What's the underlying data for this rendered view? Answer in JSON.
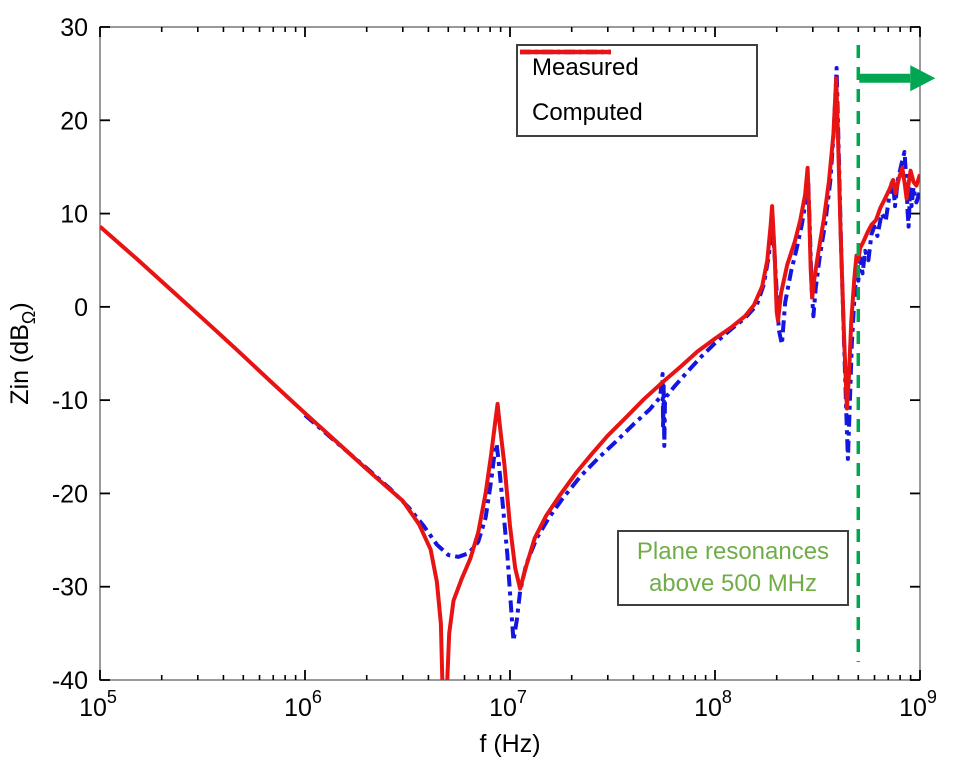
{
  "chart_data": {
    "type": "line",
    "title": "",
    "xlabel": "f (Hz)",
    "ylabel": {
      "main": "Zin (dB",
      "subscript": "Ω",
      "suffix": ")"
    },
    "x_scale": "log",
    "xlim": [
      100000,
      1000000000
    ],
    "ylim": [
      -40,
      30
    ],
    "x_ticks": [
      {
        "base": "10",
        "exp": "5"
      },
      {
        "base": "10",
        "exp": "6"
      },
      {
        "base": "10",
        "exp": "7"
      },
      {
        "base": "10",
        "exp": "8"
      },
      {
        "base": "10",
        "exp": "9"
      }
    ],
    "y_ticks": [
      "30",
      "20",
      "10",
      "0",
      "-10",
      "-20",
      "-30",
      "-40"
    ],
    "grid": false,
    "legend": {
      "position": "top-center-inside"
    },
    "series": [
      {
        "name": "Measured",
        "color": "#1515e0",
        "line_style": "dash-dot",
        "points": [
          [
            1000000.0,
            -11.6
          ],
          [
            1400000.0,
            -14.4
          ],
          [
            2000000.0,
            -17.3
          ],
          [
            2600000.0,
            -19.5
          ],
          [
            3200000.0,
            -21.5
          ],
          [
            3800000.0,
            -23.5
          ],
          [
            4400000.0,
            -25.5
          ],
          [
            5000000.0,
            -26.6
          ],
          [
            5600000.0,
            -26.8
          ],
          [
            6300000.0,
            -26.4
          ],
          [
            7000000.0,
            -25.2
          ],
          [
            7600000.0,
            -22.6
          ],
          [
            8100000.0,
            -18.6
          ],
          [
            8450000.0,
            -15.3
          ],
          [
            8600000.0,
            -14.7
          ],
          [
            8800000.0,
            -16.5
          ],
          [
            9200000.0,
            -21.0
          ],
          [
            9700000.0,
            -26.5
          ],
          [
            10100000.0,
            -32.0
          ],
          [
            10400000.0,
            -35.8
          ],
          [
            10800000.0,
            -33.5
          ],
          [
            11200000.0,
            -30.5
          ],
          [
            12000000.0,
            -27.6
          ],
          [
            13500000.0,
            -24.8
          ],
          [
            15500000.0,
            -22.6
          ],
          [
            18000000.0,
            -20.6
          ],
          [
            22000000.0,
            -18.2
          ],
          [
            27000000.0,
            -16.2
          ],
          [
            33000000.0,
            -14.4
          ],
          [
            40000000.0,
            -12.6
          ],
          [
            48000000.0,
            -11.0
          ],
          [
            54000000.0,
            -9.7
          ],
          [
            55500000.0,
            -7.2
          ],
          [
            55800000.0,
            -13.0
          ],
          [
            56200000.0,
            -8.5
          ],
          [
            56600000.0,
            -14.9
          ],
          [
            57000000.0,
            -10.0
          ],
          [
            58000000.0,
            -9.6
          ],
          [
            63000000.0,
            -8.6
          ],
          [
            73000000.0,
            -7.0
          ],
          [
            86000000.0,
            -5.3
          ],
          [
            100000000.0,
            -3.9
          ],
          [
            120000000.0,
            -2.4
          ],
          [
            140000000.0,
            -1.2
          ],
          [
            160000000.0,
            0.2
          ],
          [
            173000000.0,
            2.4
          ],
          [
            183000000.0,
            5.5
          ],
          [
            191000000.0,
            9.0
          ],
          [
            196000000.0,
            5.0
          ],
          [
            205000000.0,
            -2.5
          ],
          [
            212000000.0,
            -4.0
          ],
          [
            220000000.0,
            0.5
          ],
          [
            235000000.0,
            3.8
          ],
          [
            250000000.0,
            6.2
          ],
          [
            265000000.0,
            8.8
          ],
          [
            278000000.0,
            11.5
          ],
          [
            285000000.0,
            13.5
          ],
          [
            290000000.0,
            8.5
          ],
          [
            296000000.0,
            2.0
          ],
          [
            302000000.0,
            -1.0
          ],
          [
            310000000.0,
            2.0
          ],
          [
            325000000.0,
            5.5
          ],
          [
            345000000.0,
            9.0
          ],
          [
            365000000.0,
            13.5
          ],
          [
            380000000.0,
            19.0
          ],
          [
            392000000.0,
            25.6
          ],
          [
            400000000.0,
            18.0
          ],
          [
            412000000.0,
            6.5
          ],
          [
            428000000.0,
            -5.0
          ],
          [
            438000000.0,
            -12.0
          ],
          [
            445000000.0,
            -16.3
          ],
          [
            452000000.0,
            -12.0
          ],
          [
            465000000.0,
            -4.0
          ],
          [
            480000000.0,
            1.5
          ],
          [
            492000000.0,
            3.8
          ],
          [
            500000000.0,
            2.8
          ],
          [
            512000000.0,
            5.2
          ],
          [
            525000000.0,
            3.6
          ],
          [
            540000000.0,
            6.0
          ],
          [
            560000000.0,
            5.0
          ],
          [
            580000000.0,
            7.8
          ],
          [
            600000000.0,
            8.6
          ],
          [
            620000000.0,
            7.6
          ],
          [
            650000000.0,
            10.0
          ],
          [
            680000000.0,
            9.2
          ],
          [
            710000000.0,
            12.0
          ],
          [
            735000000.0,
            13.8
          ],
          [
            755000000.0,
            10.8
          ],
          [
            780000000.0,
            13.6
          ],
          [
            810000000.0,
            15.2
          ],
          [
            840000000.0,
            16.6
          ],
          [
            855000000.0,
            14.0
          ],
          [
            870000000.0,
            10.2
          ],
          [
            880000000.0,
            8.6
          ],
          [
            895000000.0,
            12.6
          ],
          [
            910000000.0,
            10.8
          ],
          [
            930000000.0,
            12.8
          ],
          [
            960000000.0,
            11.2
          ],
          [
            1000000000.0,
            12.4
          ]
        ]
      },
      {
        "name": "Computed",
        "color": "#e81313",
        "line_style": "solid",
        "points": [
          [
            100000.0,
            8.6
          ],
          [
            150000.0,
            5.2
          ],
          [
            220000.0,
            1.9
          ],
          [
            330000.0,
            -1.6
          ],
          [
            470000.0,
            -4.7
          ],
          [
            680000.0,
            -8.0
          ],
          [
            1000000.0,
            -11.4
          ],
          [
            1500000.0,
            -14.9
          ],
          [
            2000000.0,
            -17.4
          ],
          [
            2600000.0,
            -19.6
          ],
          [
            3000000.0,
            -20.8
          ],
          [
            3600000.0,
            -23.3
          ],
          [
            4100000.0,
            -26.0
          ],
          [
            4400000.0,
            -29.5
          ],
          [
            4600000.0,
            -34.0
          ],
          [
            4700000.0,
            -42.0
          ],
          [
            4900000.0,
            -42.0
          ],
          [
            5050000.0,
            -35.0
          ],
          [
            5300000.0,
            -31.5
          ],
          [
            5800000.0,
            -29.2
          ],
          [
            6400000.0,
            -27.0
          ],
          [
            7000000.0,
            -24.2
          ],
          [
            7600000.0,
            -20.0
          ],
          [
            8100000.0,
            -15.8
          ],
          [
            8500000.0,
            -12.1
          ],
          [
            8700000.0,
            -10.4
          ],
          [
            8900000.0,
            -12.5
          ],
          [
            9400000.0,
            -17.0
          ],
          [
            10000000.0,
            -23.5
          ],
          [
            10600000.0,
            -28.0
          ],
          [
            11200000.0,
            -30.2
          ],
          [
            12000000.0,
            -27.8
          ],
          [
            13200000.0,
            -24.8
          ],
          [
            15000000.0,
            -22.4
          ],
          [
            17500000.0,
            -20.2
          ],
          [
            21000000.0,
            -17.8
          ],
          [
            25000000.0,
            -15.8
          ],
          [
            30000000.0,
            -13.8
          ],
          [
            37000000.0,
            -11.8
          ],
          [
            45000000.0,
            -9.9
          ],
          [
            56000000.0,
            -8.0
          ],
          [
            68000000.0,
            -6.4
          ],
          [
            82000000.0,
            -4.8
          ],
          [
            100000000.0,
            -3.4
          ],
          [
            120000000.0,
            -2.2
          ],
          [
            140000000.0,
            -1.0
          ],
          [
            155000000.0,
            0.2
          ],
          [
            170000000.0,
            2.2
          ],
          [
            180000000.0,
            5.0
          ],
          [
            187000000.0,
            8.8
          ],
          [
            190000000.0,
            10.8
          ],
          [
            195000000.0,
            6.0
          ],
          [
            200000000.0,
            -0.5
          ],
          [
            203000000.0,
            -1.5
          ],
          [
            210000000.0,
            1.5
          ],
          [
            225000000.0,
            4.5
          ],
          [
            245000000.0,
            7.0
          ],
          [
            260000000.0,
            9.2
          ],
          [
            275000000.0,
            12.0
          ],
          [
            283000000.0,
            14.9
          ],
          [
            288000000.0,
            10.0
          ],
          [
            293000000.0,
            4.0
          ],
          [
            298000000.0,
            1.0
          ],
          [
            305000000.0,
            3.0
          ],
          [
            320000000.0,
            6.0
          ],
          [
            340000000.0,
            9.5
          ],
          [
            360000000.0,
            13.5
          ],
          [
            378000000.0,
            18.5
          ],
          [
            390000000.0,
            24.5
          ],
          [
            397000000.0,
            19.0
          ],
          [
            410000000.0,
            8.0
          ],
          [
            425000000.0,
            -2.5
          ],
          [
            440000000.0,
            -10.9
          ],
          [
            450000000.0,
            -7.5
          ],
          [
            462000000.0,
            -1.5
          ],
          [
            478000000.0,
            3.0
          ],
          [
            490000000.0,
            5.5
          ],
          [
            500000000.0,
            5.0
          ],
          [
            510000000.0,
            6.3
          ],
          [
            530000000.0,
            7.0
          ],
          [
            555000000.0,
            8.0
          ],
          [
            580000000.0,
            8.8
          ],
          [
            610000000.0,
            9.3
          ],
          [
            640000000.0,
            10.6
          ],
          [
            675000000.0,
            11.6
          ],
          [
            710000000.0,
            12.6
          ],
          [
            740000000.0,
            13.6
          ],
          [
            760000000.0,
            12.2
          ],
          [
            790000000.0,
            13.8
          ],
          [
            820000000.0,
            14.9
          ],
          [
            845000000.0,
            13.0
          ],
          [
            860000000.0,
            11.6
          ],
          [
            880000000.0,
            13.2
          ],
          [
            900000000.0,
            14.6
          ],
          [
            930000000.0,
            13.4
          ],
          [
            960000000.0,
            13.0
          ],
          [
            1000000000.0,
            14.2
          ]
        ]
      }
    ],
    "annotations": {
      "vline": {
        "x_hz": 500000000,
        "color": "#00a651",
        "style": "dashed"
      },
      "arrow": {
        "at_x_hz": 500000000,
        "y_db": 24.5,
        "direction": "right",
        "color": "#00a651"
      },
      "note": {
        "line1": "Plane resonances",
        "line2": "above 500 MHz",
        "text_color": "#70ad47",
        "border_color": "#3f3f3f"
      }
    }
  }
}
